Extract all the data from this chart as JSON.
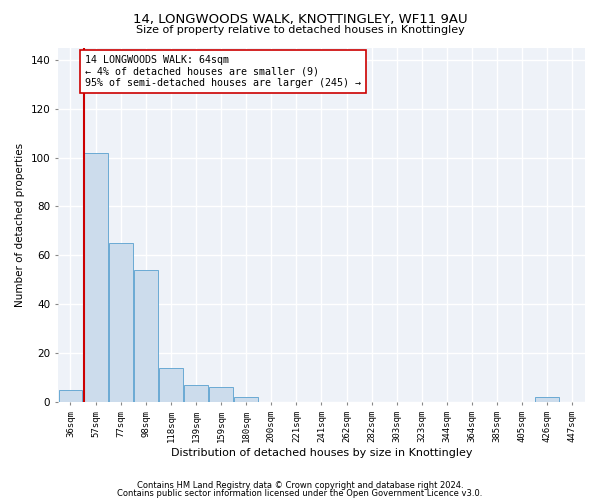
{
  "title1": "14, LONGWOODS WALK, KNOTTINGLEY, WF11 9AU",
  "title2": "Size of property relative to detached houses in Knottingley",
  "xlabel": "Distribution of detached houses by size in Knottingley",
  "ylabel": "Number of detached properties",
  "categories": [
    "36sqm",
    "57sqm",
    "77sqm",
    "98sqm",
    "118sqm",
    "139sqm",
    "159sqm",
    "180sqm",
    "200sqm",
    "221sqm",
    "241sqm",
    "262sqm",
    "282sqm",
    "303sqm",
    "323sqm",
    "344sqm",
    "364sqm",
    "385sqm",
    "405sqm",
    "426sqm",
    "447sqm"
  ],
  "values": [
    5,
    102,
    65,
    54,
    14,
    7,
    6,
    2,
    0,
    0,
    0,
    0,
    0,
    0,
    0,
    0,
    0,
    0,
    0,
    2,
    0
  ],
  "bar_color": "#ccdcec",
  "bar_edge_color": "#6aaad4",
  "vline_color": "#cc0000",
  "vline_position": 0.525,
  "annotation_text": "14 LONGWOODS WALK: 64sqm\n← 4% of detached houses are smaller (9)\n95% of semi-detached houses are larger (245) →",
  "annotation_box_color": "white",
  "annotation_box_edge_color": "#cc0000",
  "ylim": [
    0,
    145
  ],
  "yticks": [
    0,
    20,
    40,
    60,
    80,
    100,
    120,
    140
  ],
  "background_color": "#eef2f8",
  "grid_color": "white",
  "footer1": "Contains HM Land Registry data © Crown copyright and database right 2024.",
  "footer2": "Contains public sector information licensed under the Open Government Licence v3.0."
}
